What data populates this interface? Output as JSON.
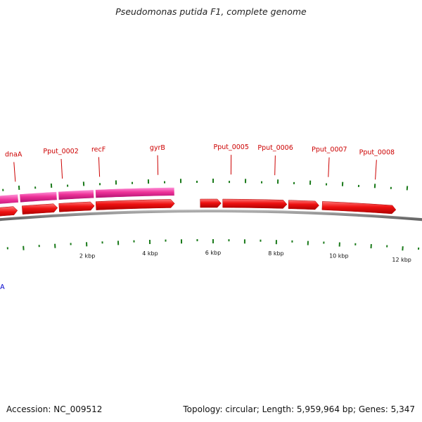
{
  "title": "Pseudomonas putida F1, complete genome",
  "footer": {
    "accession_text": "Accession: NC_009512",
    "summary_text": "Topology: circular; Length: 5,959,964 bp; Genes: 5,347"
  },
  "colors": {
    "forward_cds": "#ee1111",
    "forward_cds_light": "#ff8888",
    "rna_gene": "#ee3399",
    "rna_gene_light": "#ffaadd",
    "reverse_gene": "#0a0ae8",
    "reverse_gene_light": "#ee7777",
    "label_red": "#cc0000",
    "label_blue": "#0000cc",
    "tick_green": "#1a7a1a",
    "backbone": "#666666"
  },
  "gene_labels": [
    {
      "name": "dnaA",
      "kbp": -0.1
    },
    {
      "name": "Pput_0002",
      "kbp": 1.35
    },
    {
      "name": "recF",
      "kbp": 2.5
    },
    {
      "name": "gyrB",
      "kbp": 4.3
    },
    {
      "name": "Pput_0005",
      "kbp": 6.55
    },
    {
      "name": "Pput_0006",
      "kbp": 7.9
    },
    {
      "name": "Pput_0007",
      "kbp": 9.55
    },
    {
      "name": "Pput_0008",
      "kbp": 11.0
    }
  ],
  "reverse_gene_labels": [
    {
      "name": "rnpA",
      "kbp": -1.5
    }
  ],
  "scale_labels": [
    {
      "text": "2 kbp",
      "kbp": 2
    },
    {
      "text": "4 kbp",
      "kbp": 4
    },
    {
      "text": "6 kbp",
      "kbp": 6
    },
    {
      "text": "8 kbp",
      "kbp": 8
    },
    {
      "text": "10 kbp",
      "kbp": 10
    },
    {
      "text": "12 kbp",
      "kbp": 12
    }
  ],
  "forward_features": [
    {
      "start_kbp": -1.55,
      "end_kbp": -0.1,
      "type": "cds"
    },
    {
      "start_kbp": 0.05,
      "end_kbp": 1.15,
      "type": "cds"
    },
    {
      "start_kbp": 1.2,
      "end_kbp": 2.3,
      "type": "cds"
    },
    {
      "start_kbp": 2.35,
      "end_kbp": 4.8,
      "type": "cds"
    },
    {
      "start_kbp": 5.6,
      "end_kbp": 6.25,
      "type": "cds"
    },
    {
      "start_kbp": 6.3,
      "end_kbp": 8.3,
      "type": "cds"
    },
    {
      "start_kbp": 8.35,
      "end_kbp": 9.3,
      "type": "cds"
    },
    {
      "start_kbp": 9.4,
      "end_kbp": 11.7,
      "type": "cds"
    }
  ],
  "rna_features": [
    {
      "start_kbp": -1.55,
      "end_kbp": -0.05
    },
    {
      "start_kbp": 0.0,
      "end_kbp": 1.15
    },
    {
      "start_kbp": 1.2,
      "end_kbp": 2.3
    },
    {
      "start_kbp": 2.35,
      "end_kbp": 4.8
    }
  ],
  "reverse_features": [
    {
      "start_kbp": -3.0,
      "end_kbp": -1.6,
      "row": "inner"
    },
    {
      "start_kbp": -3.0,
      "end_kbp": -1.6,
      "row": "innermost"
    }
  ]
}
